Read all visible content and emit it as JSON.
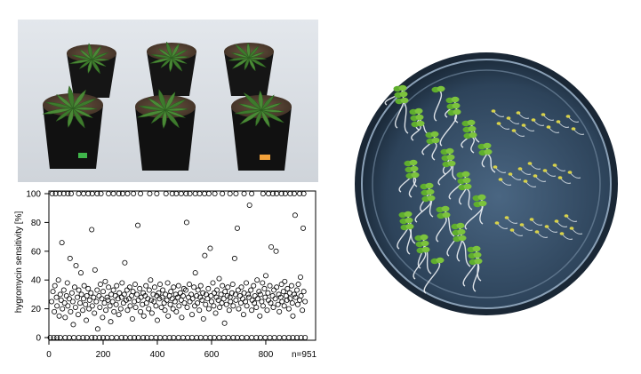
{
  "photos": {
    "top_left": "potted-plants-photo",
    "right": "petri-dish-seedlings-photo"
  },
  "colors": {
    "plot_bg": "#ffffff",
    "marker_stroke": "#000000",
    "grid": "#c8c8c8",
    "photo_backdrop": "#d8dde3",
    "dish_dark": "#1e2e40",
    "leaf_green": "#3f7a2e",
    "seedling_green": "#79c23a",
    "soil": "#5a4535",
    "pot": "#1a1a1a"
  },
  "chart_data": {
    "type": "scatter",
    "title": "",
    "xlabel": "",
    "ylabel": "hygromycin sensitivity [%]",
    "n_label": "n=951",
    "xlim": [
      0,
      951
    ],
    "ylim": [
      0,
      100
    ],
    "xticks": [
      "0",
      "200",
      "400",
      "600",
      "800"
    ],
    "yticks": [
      "0",
      "20",
      "40",
      "60",
      "80",
      "100"
    ],
    "grid": true,
    "marker": "open-circle",
    "series": [
      {
        "values_y_zero": [
          5,
          18,
          30,
          42,
          60,
          75,
          92,
          110,
          126,
          140,
          158,
          170,
          186,
          200,
          215,
          232,
          250,
          268,
          282,
          300,
          315,
          330,
          348,
          362,
          378,
          395,
          410,
          428,
          445,
          460,
          478,
          495,
          512,
          528,
          545,
          560,
          578,
          595,
          610,
          628,
          645,
          662,
          680,
          695,
          712,
          730,
          748,
          765,
          780,
          798,
          815,
          832,
          850,
          868,
          885,
          900,
          915,
          930,
          945
        ],
        "values_y_100": [
          12,
          25,
          40,
          55,
          70,
          82,
          110,
          128,
          145,
          160,
          178,
          192,
          220,
          238,
          258,
          272,
          290,
          312,
          338,
          372,
          398,
          432,
          455,
          470,
          488,
          506,
          520,
          540,
          556,
          574,
          590,
          612,
          640,
          668,
          690,
          720,
          748,
          790,
          810,
          826,
          840,
          858,
          872,
          890,
          905,
          925,
          940
        ],
        "scatter_points": [
          [
            10,
            25
          ],
          [
            15,
            32
          ],
          [
            20,
            18
          ],
          [
            22,
            36
          ],
          [
            28,
            28
          ],
          [
            30,
            22
          ],
          [
            35,
            40
          ],
          [
            38,
            15
          ],
          [
            42,
            30
          ],
          [
            45,
            26
          ],
          [
            48,
            66
          ],
          [
            50,
            20
          ],
          [
            55,
            33
          ],
          [
            58,
            24
          ],
          [
            60,
            14
          ],
          [
            65,
            29
          ],
          [
            68,
            38
          ],
          [
            70,
            22
          ],
          [
            75,
            27
          ],
          [
            78,
            55
          ],
          [
            80,
            18
          ],
          [
            85,
            31
          ],
          [
            88,
            25
          ],
          [
            90,
            9
          ],
          [
            95,
            35
          ],
          [
            98,
            21
          ],
          [
            100,
            50
          ],
          [
            105,
            28
          ],
          [
            108,
            16
          ],
          [
            110,
            33
          ],
          [
            115,
            24
          ],
          [
            118,
            45
          ],
          [
            120,
            30
          ],
          [
            125,
            19
          ],
          [
            128,
            27
          ],
          [
            130,
            36
          ],
          [
            135,
            23
          ],
          [
            138,
            12
          ],
          [
            140,
            29
          ],
          [
            145,
            34
          ],
          [
            148,
            20
          ],
          [
            150,
            26
          ],
          [
            155,
            31
          ],
          [
            158,
            75
          ],
          [
            160,
            22
          ],
          [
            165,
            28
          ],
          [
            168,
            17
          ],
          [
            170,
            47
          ],
          [
            175,
            25
          ],
          [
            178,
            33
          ],
          [
            180,
            6
          ],
          [
            185,
            29
          ],
          [
            188,
            21
          ],
          [
            190,
            37
          ],
          [
            195,
            27
          ],
          [
            198,
            14
          ],
          [
            200,
            32
          ],
          [
            205,
            24
          ],
          [
            208,
            39
          ],
          [
            210,
            19
          ],
          [
            215,
            28
          ],
          [
            218,
            26
          ],
          [
            220,
            35
          ],
          [
            225,
            22
          ],
          [
            228,
            11
          ],
          [
            230,
            30
          ],
          [
            235,
            25
          ],
          [
            238,
            33
          ],
          [
            240,
            18
          ],
          [
            245,
            29
          ],
          [
            248,
            23
          ],
          [
            250,
            36
          ],
          [
            255,
            27
          ],
          [
            258,
            16
          ],
          [
            260,
            31
          ],
          [
            265,
            20
          ],
          [
            268,
            28
          ],
          [
            270,
            38
          ],
          [
            275,
            24
          ],
          [
            278,
            30
          ],
          [
            280,
            52
          ],
          [
            285,
            26
          ],
          [
            288,
            33
          ],
          [
            290,
            19
          ],
          [
            295,
            27
          ],
          [
            298,
            35
          ],
          [
            300,
            22
          ],
          [
            305,
            29
          ],
          [
            308,
            13
          ],
          [
            310,
            32
          ],
          [
            315,
            25
          ],
          [
            318,
            37
          ],
          [
            320,
            21
          ],
          [
            325,
            30
          ],
          [
            328,
            78
          ],
          [
            330,
            26
          ],
          [
            335,
            34
          ],
          [
            338,
            18
          ],
          [
            340,
            28
          ],
          [
            345,
            23
          ],
          [
            348,
            31
          ],
          [
            350,
            15
          ],
          [
            355,
            29
          ],
          [
            358,
            36
          ],
          [
            360,
            24
          ],
          [
            365,
            27
          ],
          [
            368,
            20
          ],
          [
            370,
            33
          ],
          [
            375,
            40
          ],
          [
            378,
            26
          ],
          [
            380,
            17
          ],
          [
            385,
            30
          ],
          [
            388,
            25
          ],
          [
            390,
            35
          ],
          [
            395,
            22
          ],
          [
            398,
            29
          ],
          [
            400,
            12
          ],
          [
            405,
            31
          ],
          [
            408,
            27
          ],
          [
            410,
            37
          ],
          [
            415,
            21
          ],
          [
            418,
            28
          ],
          [
            420,
            33
          ],
          [
            425,
            24
          ],
          [
            428,
            19
          ],
          [
            430,
            30
          ],
          [
            435,
            26
          ],
          [
            438,
            38
          ],
          [
            440,
            15
          ],
          [
            445,
            29
          ],
          [
            448,
            23
          ],
          [
            450,
            32
          ],
          [
            455,
            27
          ],
          [
            458,
            20
          ],
          [
            460,
            35
          ],
          [
            465,
            25
          ],
          [
            468,
            30
          ],
          [
            470,
            18
          ],
          [
            475,
            28
          ],
          [
            478,
            36
          ],
          [
            480,
            22
          ],
          [
            485,
            31
          ],
          [
            488,
            26
          ],
          [
            490,
            14
          ],
          [
            495,
            29
          ],
          [
            498,
            34
          ],
          [
            500,
            24
          ],
          [
            505,
            33
          ],
          [
            508,
            80
          ],
          [
            510,
            21
          ],
          [
            515,
            28
          ],
          [
            518,
            37
          ],
          [
            520,
            25
          ],
          [
            525,
            30
          ],
          [
            528,
            16
          ],
          [
            530,
            27
          ],
          [
            535,
            35
          ],
          [
            538,
            22
          ],
          [
            540,
            45
          ],
          [
            545,
            29
          ],
          [
            548,
            24
          ],
          [
            550,
            33
          ],
          [
            555,
            19
          ],
          [
            558,
            28
          ],
          [
            560,
            36
          ],
          [
            565,
            26
          ],
          [
            568,
            31
          ],
          [
            570,
            13
          ],
          [
            575,
            57
          ],
          [
            578,
            23
          ],
          [
            580,
            30
          ],
          [
            585,
            27
          ],
          [
            588,
            34
          ],
          [
            590,
            20
          ],
          [
            595,
            62
          ],
          [
            598,
            29
          ],
          [
            600,
            25
          ],
          [
            605,
            38
          ],
          [
            608,
            22
          ],
          [
            610,
            31
          ],
          [
            615,
            17
          ],
          [
            618,
            28
          ],
          [
            620,
            33
          ],
          [
            625,
            26
          ],
          [
            628,
            41
          ],
          [
            630,
            21
          ],
          [
            635,
            30
          ],
          [
            638,
            24
          ],
          [
            640,
            36
          ],
          [
            645,
            27
          ],
          [
            648,
            10
          ],
          [
            650,
            32
          ],
          [
            655,
            23
          ],
          [
            658,
            29
          ],
          [
            660,
            35
          ],
          [
            665,
            19
          ],
          [
            668,
            28
          ],
          [
            670,
            25
          ],
          [
            675,
            31
          ],
          [
            678,
            37
          ],
          [
            680,
            22
          ],
          [
            685,
            55
          ],
          [
            688,
            30
          ],
          [
            690,
            26
          ],
          [
            695,
            76
          ],
          [
            698,
            33
          ],
          [
            700,
            20
          ],
          [
            705,
            29
          ],
          [
            708,
            24
          ],
          [
            710,
            35
          ],
          [
            715,
            27
          ],
          [
            718,
            16
          ],
          [
            720,
            31
          ],
          [
            725,
            25
          ],
          [
            728,
            38
          ],
          [
            730,
            22
          ],
          [
            735,
            30
          ],
          [
            738,
            28
          ],
          [
            740,
            92
          ],
          [
            745,
            33
          ],
          [
            748,
            19
          ],
          [
            750,
            26
          ],
          [
            755,
            36
          ],
          [
            758,
            24
          ],
          [
            760,
            29
          ],
          [
            765,
            21
          ],
          [
            768,
            40
          ],
          [
            770,
            27
          ],
          [
            775,
            32
          ],
          [
            778,
            15
          ],
          [
            780,
            30
          ],
          [
            785,
            25
          ],
          [
            788,
            38
          ],
          [
            790,
            22
          ],
          [
            795,
            34
          ],
          [
            798,
            28
          ],
          [
            800,
            43
          ],
          [
            805,
            19
          ],
          [
            808,
            31
          ],
          [
            810,
            26
          ],
          [
            815,
            36
          ],
          [
            818,
            24
          ],
          [
            820,
            63
          ],
          [
            825,
            29
          ],
          [
            828,
            21
          ],
          [
            830,
            33
          ],
          [
            835,
            27
          ],
          [
            838,
            60
          ],
          [
            840,
            35
          ],
          [
            845,
            23
          ],
          [
            848,
            30
          ],
          [
            850,
            18
          ],
          [
            855,
            28
          ],
          [
            858,
            37
          ],
          [
            860,
            25
          ],
          [
            865,
            32
          ],
          [
            868,
            22
          ],
          [
            870,
            39
          ],
          [
            875,
            29
          ],
          [
            878,
            26
          ],
          [
            880,
            34
          ],
          [
            885,
            20
          ],
          [
            888,
            31
          ],
          [
            890,
            27
          ],
          [
            895,
            36
          ],
          [
            898,
            24
          ],
          [
            900,
            15
          ],
          [
            905,
            30
          ],
          [
            908,
            85
          ],
          [
            910,
            28
          ],
          [
            915,
            33
          ],
          [
            918,
            23
          ],
          [
            920,
            37
          ],
          [
            925,
            26
          ],
          [
            928,
            42
          ],
          [
            930,
            29
          ],
          [
            935,
            19
          ],
          [
            938,
            76
          ],
          [
            940,
            32
          ],
          [
            945,
            25
          ]
        ]
      }
    ]
  }
}
